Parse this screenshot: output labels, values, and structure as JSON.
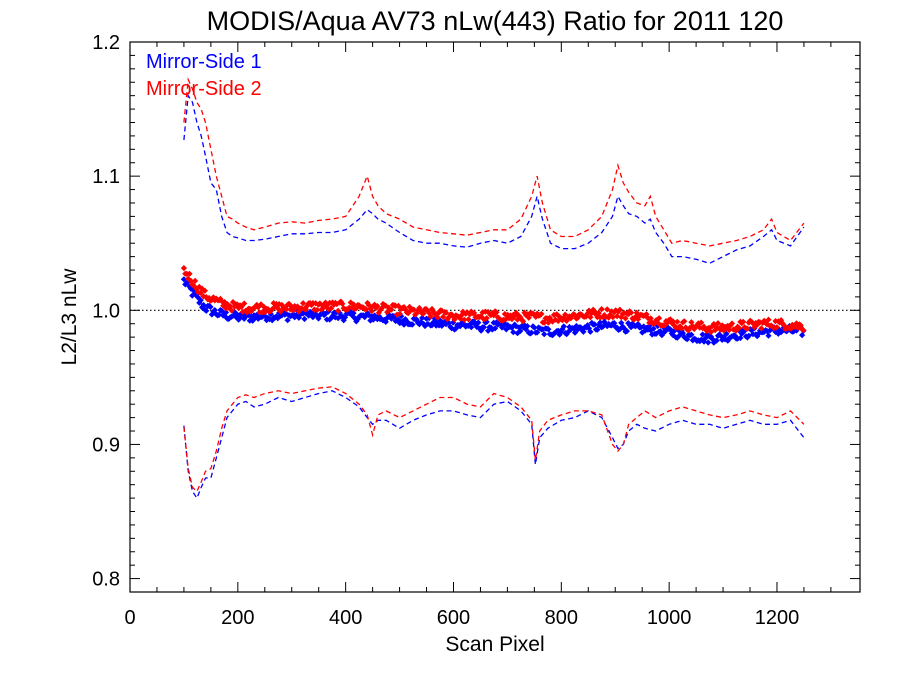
{
  "colors": {
    "series1": "#0000ff",
    "series2": "#ff0000",
    "axes": "#000000"
  },
  "chart_data": {
    "type": "line",
    "title": "MODIS/Aqua AV73 nLw(443) Ratio for 2011 120",
    "xlabel": "Scan Pixel",
    "ylabel": "L2/L3 nLw",
    "xlim": [
      0,
      1354
    ],
    "ylim": [
      0.79,
      1.2
    ],
    "xticks": [
      "0",
      "200",
      "400",
      "600",
      "800",
      "1000",
      "1200"
    ],
    "yticks": [
      "0.8",
      "0.9",
      "1.0",
      "1.1",
      "1.2"
    ],
    "reference_line": 1.0,
    "legend": {
      "placement": "top-left"
    },
    "series": [
      {
        "name": "Mirror-Side 1",
        "color": "#0000ff",
        "mean_x": [
          100,
          108,
          116,
          124,
          132,
          140,
          150,
          160,
          170,
          180,
          190,
          200,
          215,
          230,
          250,
          275,
          300,
          325,
          350,
          375,
          400,
          425,
          450,
          475,
          500,
          525,
          550,
          575,
          600,
          625,
          650,
          675,
          700,
          725,
          750,
          775,
          800,
          825,
          850,
          875,
          900,
          925,
          950,
          975,
          1000,
          1025,
          1050,
          1075,
          1100,
          1125,
          1150,
          1175,
          1200,
          1225,
          1250
        ],
        "mean_y": [
          1.022,
          1.018,
          1.013,
          1.009,
          1.005,
          1.002,
          1.0,
          0.998,
          0.997,
          0.996,
          0.996,
          0.995,
          0.995,
          0.995,
          0.996,
          0.996,
          0.996,
          0.997,
          0.996,
          0.996,
          0.996,
          0.995,
          0.995,
          0.994,
          0.993,
          0.992,
          0.991,
          0.99,
          0.989,
          0.989,
          0.988,
          0.988,
          0.987,
          0.986,
          0.985,
          0.984,
          0.985,
          0.986,
          0.987,
          0.988,
          0.989,
          0.987,
          0.986,
          0.985,
          0.984,
          0.982,
          0.98,
          0.979,
          0.98,
          0.982,
          0.983,
          0.984,
          0.985,
          0.985,
          0.984
        ],
        "upper_x": [
          100,
          108,
          116,
          124,
          132,
          140,
          150,
          160,
          170,
          180,
          190,
          200,
          215,
          230,
          250,
          275,
          300,
          325,
          350,
          375,
          400,
          425,
          440,
          450,
          460,
          475,
          500,
          525,
          550,
          575,
          600,
          625,
          650,
          675,
          700,
          725,
          745,
          755,
          765,
          780,
          800,
          825,
          850,
          875,
          895,
          905,
          915,
          925,
          940,
          955,
          965,
          975,
          990,
          1005,
          1025,
          1050,
          1075,
          1100,
          1125,
          1150,
          1175,
          1190,
          1200,
          1225,
          1250
        ],
        "upper_y": [
          1.127,
          1.16,
          1.155,
          1.14,
          1.13,
          1.115,
          1.095,
          1.09,
          1.07,
          1.058,
          1.055,
          1.054,
          1.052,
          1.052,
          1.053,
          1.055,
          1.057,
          1.057,
          1.058,
          1.058,
          1.06,
          1.068,
          1.075,
          1.072,
          1.068,
          1.065,
          1.058,
          1.052,
          1.05,
          1.05,
          1.048,
          1.047,
          1.05,
          1.052,
          1.05,
          1.055,
          1.07,
          1.085,
          1.068,
          1.05,
          1.046,
          1.046,
          1.05,
          1.058,
          1.07,
          1.085,
          1.078,
          1.072,
          1.07,
          1.065,
          1.068,
          1.058,
          1.05,
          1.04,
          1.04,
          1.038,
          1.035,
          1.04,
          1.045,
          1.048,
          1.055,
          1.06,
          1.052,
          1.048,
          1.062
        ],
        "lower_x": [
          100,
          108,
          116,
          124,
          132,
          140,
          150,
          160,
          170,
          180,
          190,
          200,
          215,
          230,
          250,
          275,
          300,
          325,
          350,
          375,
          400,
          425,
          440,
          450,
          460,
          475,
          500,
          525,
          550,
          575,
          600,
          625,
          650,
          675,
          700,
          725,
          745,
          752,
          760,
          775,
          800,
          825,
          850,
          875,
          895,
          905,
          915,
          925,
          940,
          955,
          975,
          1000,
          1025,
          1050,
          1075,
          1100,
          1125,
          1150,
          1175,
          1200,
          1225,
          1250
        ],
        "lower_y": [
          0.914,
          0.88,
          0.865,
          0.86,
          0.868,
          0.875,
          0.875,
          0.89,
          0.905,
          0.92,
          0.925,
          0.93,
          0.932,
          0.928,
          0.93,
          0.935,
          0.932,
          0.935,
          0.938,
          0.94,
          0.935,
          0.928,
          0.92,
          0.915,
          0.918,
          0.918,
          0.912,
          0.918,
          0.922,
          0.925,
          0.925,
          0.922,
          0.92,
          0.93,
          0.932,
          0.925,
          0.915,
          0.885,
          0.905,
          0.912,
          0.918,
          0.92,
          0.925,
          0.92,
          0.905,
          0.897,
          0.9,
          0.91,
          0.915,
          0.912,
          0.91,
          0.915,
          0.918,
          0.915,
          0.915,
          0.912,
          0.915,
          0.918,
          0.915,
          0.915,
          0.918,
          0.905
        ]
      },
      {
        "name": "Mirror-Side 2",
        "color": "#ff0000",
        "mean_x": [
          100,
          108,
          116,
          124,
          132,
          140,
          150,
          160,
          170,
          180,
          190,
          200,
          215,
          230,
          250,
          275,
          300,
          325,
          350,
          375,
          400,
          425,
          450,
          475,
          500,
          525,
          550,
          575,
          600,
          625,
          650,
          675,
          700,
          725,
          750,
          775,
          800,
          825,
          850,
          875,
          900,
          925,
          950,
          975,
          1000,
          1025,
          1050,
          1075,
          1100,
          1125,
          1150,
          1175,
          1200,
          1225,
          1250
        ],
        "mean_y": [
          1.03,
          1.026,
          1.022,
          1.018,
          1.014,
          1.011,
          1.009,
          1.007,
          1.005,
          1.004,
          1.003,
          1.002,
          1.002,
          1.002,
          1.002,
          1.002,
          1.002,
          1.003,
          1.003,
          1.003,
          1.003,
          1.003,
          1.002,
          1.001,
          1.0,
          0.999,
          0.998,
          0.997,
          0.996,
          0.996,
          0.996,
          0.996,
          0.995,
          0.995,
          0.995,
          0.994,
          0.995,
          0.996,
          0.997,
          0.998,
          0.998,
          0.997,
          0.995,
          0.993,
          0.991,
          0.989,
          0.988,
          0.987,
          0.987,
          0.988,
          0.989,
          0.99,
          0.99,
          0.989,
          0.988
        ],
        "upper_x": [
          100,
          108,
          116,
          124,
          132,
          140,
          150,
          160,
          170,
          180,
          190,
          200,
          215,
          230,
          250,
          275,
          300,
          325,
          350,
          375,
          400,
          425,
          440,
          450,
          460,
          475,
          500,
          525,
          550,
          575,
          600,
          625,
          650,
          675,
          700,
          725,
          745,
          755,
          765,
          780,
          800,
          825,
          850,
          875,
          895,
          905,
          915,
          925,
          940,
          955,
          965,
          975,
          990,
          1005,
          1025,
          1050,
          1075,
          1100,
          1125,
          1150,
          1175,
          1190,
          1200,
          1225,
          1250
        ],
        "upper_y": [
          1.14,
          1.172,
          1.165,
          1.155,
          1.15,
          1.14,
          1.12,
          1.1,
          1.085,
          1.07,
          1.068,
          1.065,
          1.062,
          1.06,
          1.062,
          1.065,
          1.066,
          1.065,
          1.067,
          1.068,
          1.07,
          1.085,
          1.1,
          1.085,
          1.078,
          1.072,
          1.068,
          1.062,
          1.06,
          1.058,
          1.057,
          1.056,
          1.058,
          1.06,
          1.06,
          1.068,
          1.085,
          1.1,
          1.08,
          1.06,
          1.055,
          1.055,
          1.06,
          1.07,
          1.09,
          1.108,
          1.095,
          1.088,
          1.08,
          1.078,
          1.085,
          1.07,
          1.06,
          1.05,
          1.052,
          1.05,
          1.048,
          1.05,
          1.052,
          1.055,
          1.06,
          1.068,
          1.058,
          1.052,
          1.065
        ],
        "lower_x": [
          100,
          108,
          116,
          124,
          132,
          140,
          150,
          160,
          170,
          180,
          190,
          200,
          215,
          230,
          250,
          275,
          300,
          325,
          350,
          375,
          400,
          425,
          440,
          450,
          460,
          475,
          500,
          525,
          550,
          575,
          600,
          625,
          650,
          675,
          700,
          725,
          745,
          752,
          760,
          775,
          800,
          825,
          850,
          875,
          895,
          905,
          915,
          925,
          940,
          955,
          975,
          1000,
          1025,
          1050,
          1075,
          1100,
          1125,
          1150,
          1175,
          1200,
          1225,
          1250
        ],
        "lower_y": [
          0.913,
          0.882,
          0.868,
          0.865,
          0.872,
          0.88,
          0.882,
          0.895,
          0.912,
          0.925,
          0.93,
          0.935,
          0.937,
          0.935,
          0.938,
          0.94,
          0.938,
          0.94,
          0.942,
          0.943,
          0.938,
          0.93,
          0.922,
          0.907,
          0.922,
          0.925,
          0.92,
          0.925,
          0.93,
          0.935,
          0.935,
          0.93,
          0.928,
          0.938,
          0.935,
          0.928,
          0.918,
          0.888,
          0.91,
          0.918,
          0.922,
          0.925,
          0.925,
          0.922,
          0.9,
          0.895,
          0.9,
          0.915,
          0.92,
          0.925,
          0.92,
          0.925,
          0.928,
          0.925,
          0.922,
          0.92,
          0.922,
          0.925,
          0.922,
          0.92,
          0.925,
          0.915
        ]
      }
    ]
  }
}
